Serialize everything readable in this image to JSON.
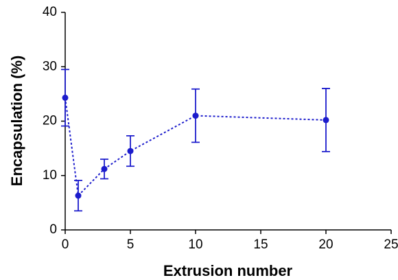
{
  "chart_data": {
    "type": "line",
    "xlabel": "Extrusion number",
    "ylabel": "Encapsulation (%)",
    "x": [
      0,
      1,
      3,
      5,
      10,
      20
    ],
    "series": [
      {
        "color": "#1c1ccc",
        "values": [
          24.3,
          6.3,
          11.2,
          14.5,
          21.0,
          20.2
        ],
        "errors": [
          5.2,
          2.8,
          1.8,
          2.8,
          4.9,
          5.8
        ]
      }
    ],
    "xlim": [
      0,
      25
    ],
    "xticks": [
      0,
      5,
      10,
      15,
      20,
      25
    ],
    "ylim": [
      0,
      40
    ],
    "yticks": [
      0,
      10,
      20,
      30,
      40
    ],
    "grid": false,
    "line_style": "dotted"
  }
}
